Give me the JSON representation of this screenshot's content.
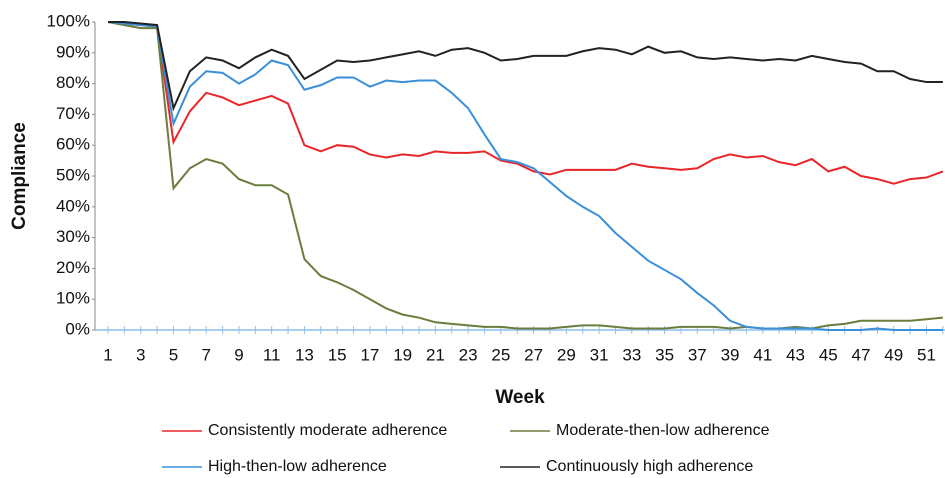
{
  "chart_data": {
    "type": "line",
    "y_label": "Compliance",
    "x_label": "Week",
    "categories": [
      "1",
      null,
      "3",
      null,
      "5",
      null,
      "7",
      null,
      "9",
      null,
      "11",
      null,
      "13",
      null,
      "15",
      null,
      "17",
      null,
      "19",
      null,
      "21",
      null,
      "23",
      null,
      "25",
      null,
      "27",
      null,
      "29",
      null,
      "31",
      null,
      "33",
      null,
      "35",
      null,
      "37",
      null,
      "39",
      null,
      "41",
      null,
      "43",
      null,
      "45",
      null,
      "47",
      null,
      "49",
      null,
      "51",
      null
    ],
    "ylim": [
      0,
      100
    ],
    "yticks": [
      {
        "value": 0,
        "label": "0%"
      },
      {
        "value": 10,
        "label": "10%"
      },
      {
        "value": 20,
        "label": "20%"
      },
      {
        "value": 30,
        "label": "30%"
      },
      {
        "value": 40,
        "label": "40%"
      },
      {
        "value": 50,
        "label": "50%"
      },
      {
        "value": 60,
        "label": "60%"
      },
      {
        "value": 70,
        "label": "70%"
      },
      {
        "value": 80,
        "label": "80%"
      },
      {
        "value": 90,
        "label": "90%"
      },
      {
        "value": 100,
        "label": "100%"
      }
    ],
    "series": [
      {
        "name": "Consistently moderate adherence",
        "color": "#e8262a",
        "values": [
          100,
          99.5,
          99,
          98.5,
          61,
          71,
          77,
          75.5,
          73,
          74.5,
          76,
          73.5,
          60,
          58,
          60,
          59.5,
          57,
          56,
          57,
          56.5,
          58,
          57.5,
          57.5,
          58,
          55,
          54,
          51.5,
          50.5,
          52,
          52,
          52,
          52,
          54,
          53,
          52.5,
          52,
          52.5,
          55.5,
          57,
          56,
          56.5,
          54.5,
          53.5,
          55.5,
          51.5,
          53,
          50,
          49,
          47.5,
          49,
          49.5,
          51.5
        ]
      },
      {
        "name": "Moderate-then-low adherence",
        "color": "#6b7d3c",
        "values": [
          100,
          99,
          98,
          98,
          46,
          52.5,
          55.5,
          54,
          49,
          47,
          47,
          44,
          23,
          17.5,
          15.5,
          13,
          10,
          7,
          5,
          4,
          2.5,
          2,
          1.5,
          1,
          1,
          0.5,
          0.5,
          0.5,
          1,
          1.5,
          1.5,
          1,
          0.5,
          0.5,
          0.5,
          1,
          1,
          1,
          0.5,
          1,
          0.5,
          0.5,
          1,
          0.5,
          1.5,
          2,
          3,
          3,
          3,
          3,
          3.5,
          4
        ]
      },
      {
        "name": "High-then-low adherence",
        "color": "#3a8fd8",
        "values": [
          100,
          99.5,
          99,
          98.5,
          67,
          79,
          84,
          83.5,
          80,
          83,
          87.5,
          86,
          78,
          79.5,
          82,
          82,
          79,
          81,
          80.5,
          81,
          81,
          77,
          72,
          63.5,
          55.5,
          54.5,
          52.5,
          48,
          43.5,
          40,
          37,
          31.5,
          27,
          22.5,
          19.5,
          16.5,
          12,
          8,
          3,
          1,
          0.5,
          0.5,
          0.5,
          0.5,
          0,
          0,
          0,
          0.5,
          0,
          0,
          0,
          0
        ]
      },
      {
        "name": "Continuously high adherence",
        "color": "#222222",
        "values": [
          100,
          100,
          99.5,
          99,
          72,
          84,
          88.5,
          87.5,
          85,
          88.5,
          91,
          89,
          81.5,
          84.5,
          87.5,
          87,
          87.5,
          88.5,
          89.5,
          90.5,
          89,
          91,
          91.5,
          90,
          87.5,
          88,
          89,
          89,
          89,
          90.5,
          91.5,
          91,
          89.5,
          92,
          90,
          90.5,
          88.5,
          88,
          88.5,
          88,
          87.5,
          88,
          87.5,
          89,
          88,
          87,
          86.5,
          84,
          84,
          81.5,
          80.5,
          80.5
        ]
      }
    ]
  }
}
